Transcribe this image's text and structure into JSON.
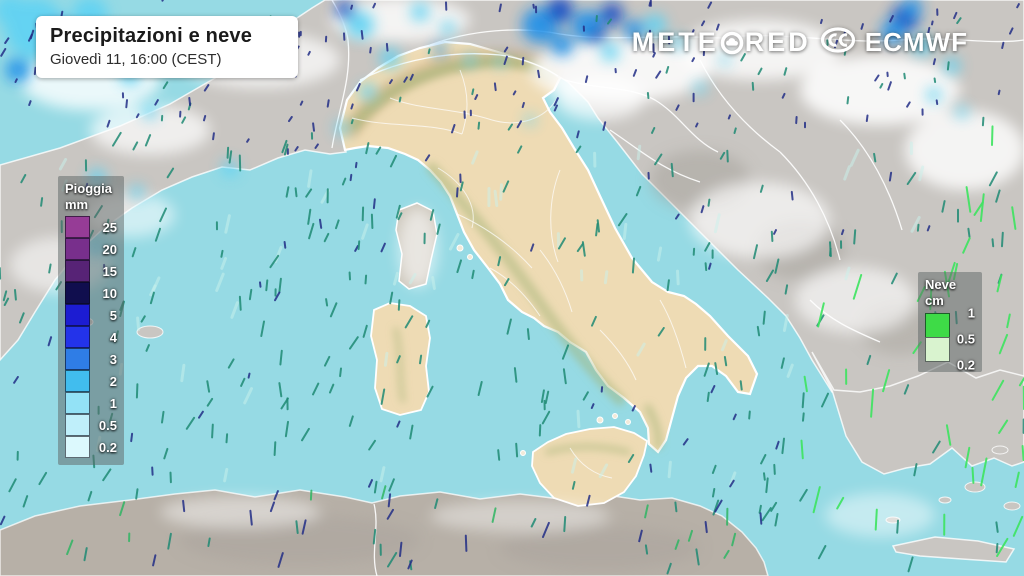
{
  "title_box": {
    "title": "Precipitazioni e neve",
    "subtitle": "Giovedì 11, 16:00 (CEST)"
  },
  "brand": {
    "name": "METEORED",
    "partner": "ECMWF"
  },
  "rain_legend": {
    "title": "Pioggia",
    "unit": "mm",
    "stops": [
      {
        "label": "25",
        "color": "#963c96"
      },
      {
        "label": "20",
        "color": "#782f8c"
      },
      {
        "label": "15",
        "color": "#572376"
      },
      {
        "label": "10",
        "color": "#100e4e"
      },
      {
        "label": "5",
        "color": "#1c1cd2"
      },
      {
        "label": "4",
        "color": "#2333ea"
      },
      {
        "label": "3",
        "color": "#2f7de6"
      },
      {
        "label": "2",
        "color": "#41bdee"
      },
      {
        "label": "1",
        "color": "#93e2f6"
      },
      {
        "label": "0.5",
        "color": "#bfeffa"
      },
      {
        "label": "0.2",
        "color": "#dcf9fd"
      }
    ]
  },
  "snow_legend": {
    "title": "Neve",
    "unit": "cm",
    "cells": [
      {
        "color": "#3edb47"
      },
      {
        "color": "#d9f3cf"
      }
    ],
    "labels": [
      "1",
      "0.5",
      "0.2"
    ]
  },
  "colors": {
    "sea": "#96dae4",
    "grayland": "#c9c6c2",
    "africa": "#b7b0a7",
    "italy": "#eedbb4",
    "corsica": "#cdc7bc",
    "coast": "#ffffff",
    "precip_light": "#5ed2f3",
    "precip_mid": "#1f8fe8",
    "precip_deep": "#0f46c4",
    "ridge_green": "#a3b476",
    "ridge_brown": "#c6a87e"
  },
  "particles": {
    "seed": 1337,
    "count": 560,
    "palette": {
      "navy": "#232e86",
      "teal": "#1f8a74",
      "green": "#3ce45f",
      "green2": "#2fb563",
      "pale": "#c9f1ec"
    }
  }
}
